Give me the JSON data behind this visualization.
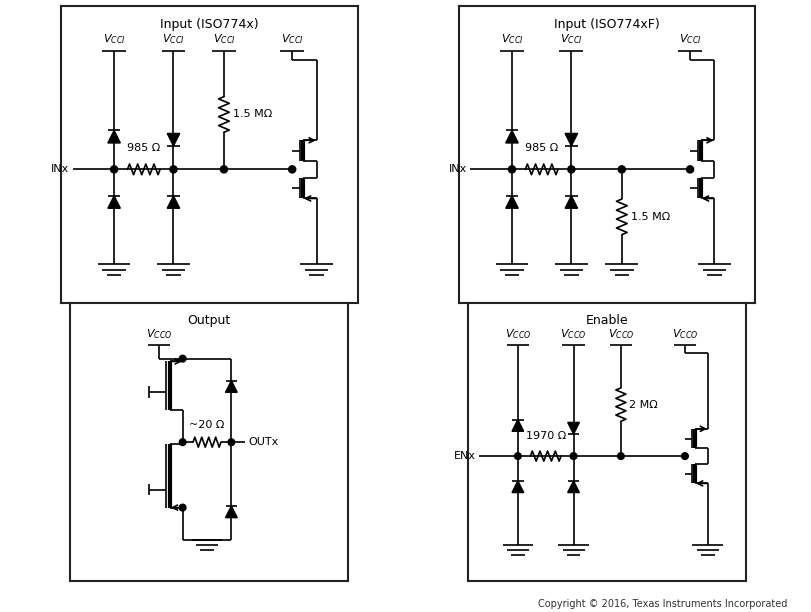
{
  "title_tl": "Input (ISO774x)",
  "title_tr": "Input (ISO774xF)",
  "title_bl": "Output",
  "title_br": "Enable",
  "copyright": "Copyright © 2016, Texas Instruments Incorporated",
  "bg_color": "#ffffff",
  "line_color": "#000000",
  "lw": 1.2,
  "fig_width": 8.12,
  "fig_height": 6.12
}
